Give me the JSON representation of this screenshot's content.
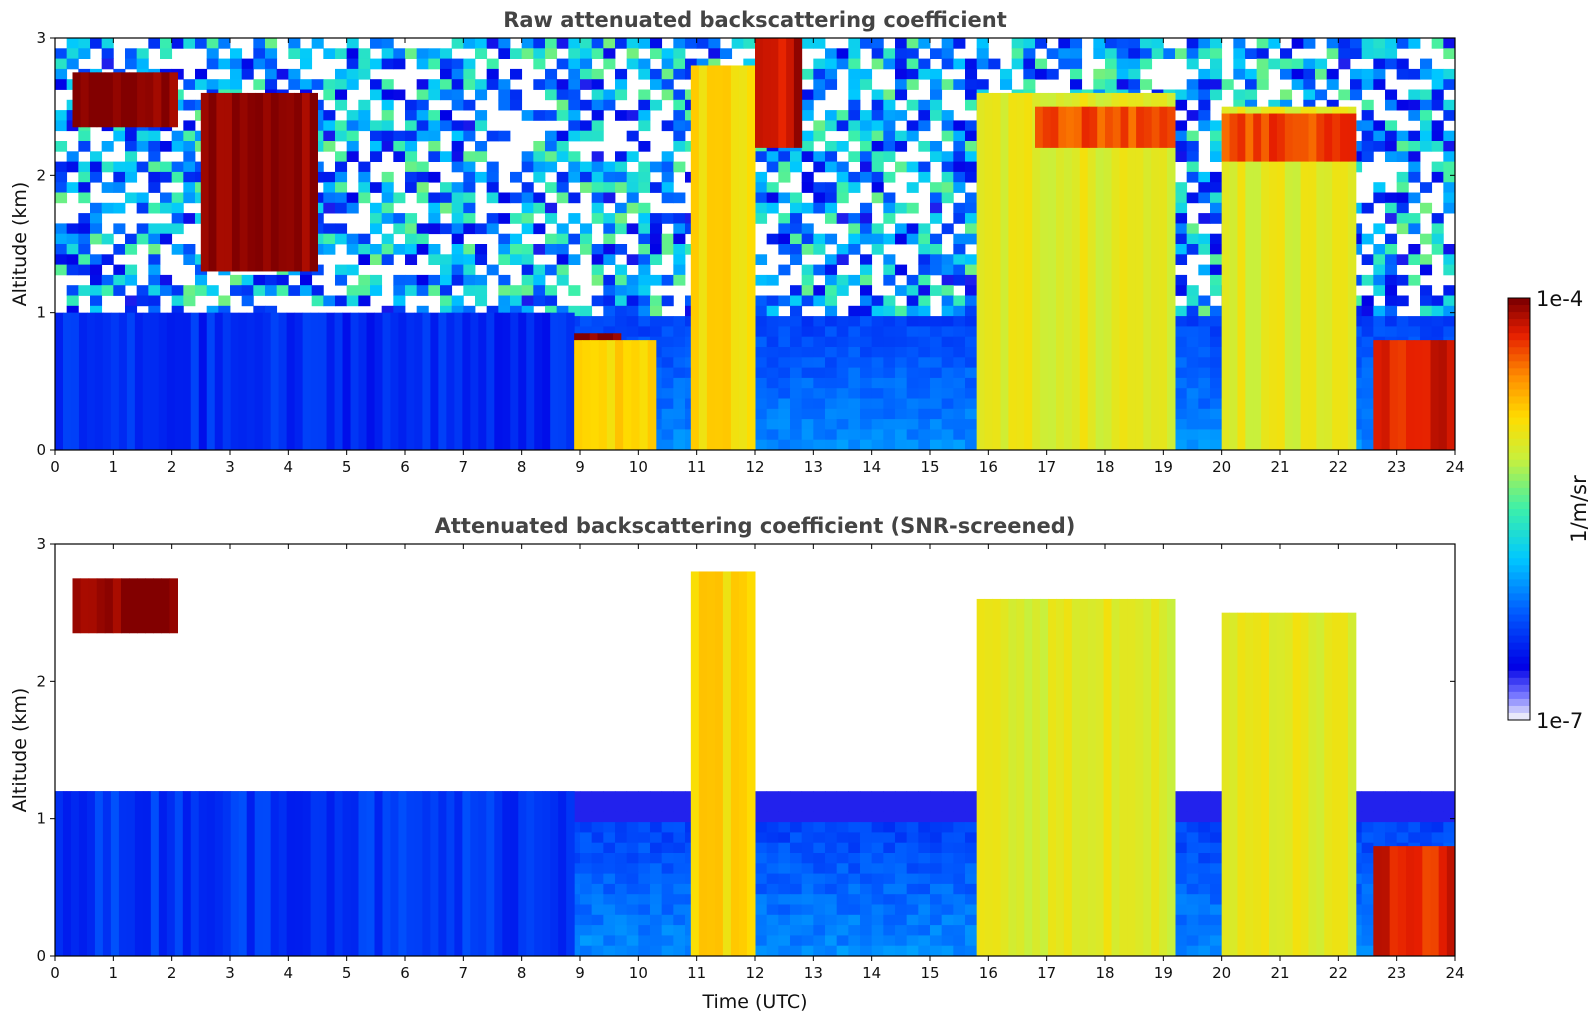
{
  "figure": {
    "colorbar": {
      "label": "1/m/sr",
      "max_label": "1e-4",
      "min_label": "1e-7",
      "scale": "log",
      "colormap": "jet-like (white/lavender at minimum to dark red at maximum)"
    }
  },
  "chart_data": [
    {
      "type": "heatmap",
      "title": "Raw attenuated backscattering coefficient",
      "xlabel": "",
      "ylabel": "Altitude (km)",
      "xlim": [
        0,
        24
      ],
      "ylim": [
        0,
        3
      ],
      "xticks": [
        "0",
        "1",
        "2",
        "3",
        "4",
        "5",
        "6",
        "7",
        "8",
        "9",
        "10",
        "11",
        "12",
        "13",
        "14",
        "15",
        "16",
        "17",
        "18",
        "19",
        "20",
        "21",
        "22",
        "23",
        "24"
      ],
      "yticks": [
        "0",
        "1",
        "2",
        "3"
      ],
      "features": [
        {
          "label": "noisy boundary layer, low signal",
          "x": [
            0,
            8.9
          ],
          "y": [
            0,
            1.0
          ],
          "level": 0.18
        },
        {
          "label": "elevated cloud layer",
          "x": [
            0.3,
            2.1
          ],
          "y": [
            2.35,
            2.75
          ],
          "level": 1.0
        },
        {
          "label": "cloud streaks",
          "x": [
            2.5,
            4.5
          ],
          "y": [
            1.3,
            2.6
          ],
          "level": 1.0
        },
        {
          "label": "low cloud at 0.8 km",
          "x": [
            8.9,
            9.7
          ],
          "y": [
            0.7,
            0.85
          ],
          "level": 1.0
        },
        {
          "label": "precipitation/aerosol column",
          "x": [
            8.9,
            10.3
          ],
          "y": [
            0,
            0.8
          ],
          "level": 0.72
        },
        {
          "label": "precipitation column",
          "x": [
            10.9,
            12.0
          ],
          "y": [
            0,
            2.8
          ],
          "level": 0.72
        },
        {
          "label": "cirrus streak",
          "x": [
            12.0,
            12.8
          ],
          "y": [
            2.2,
            3.0
          ],
          "level": 0.95
        },
        {
          "label": "thick layer",
          "x": [
            15.8,
            19.2
          ],
          "y": [
            0,
            2.6
          ],
          "level": 0.66
        },
        {
          "label": "cloud top",
          "x": [
            16.8,
            19.2
          ],
          "y": [
            2.2,
            2.5
          ],
          "level": 0.88
        },
        {
          "label": "thick layer",
          "x": [
            20.0,
            22.3
          ],
          "y": [
            0,
            2.5
          ],
          "level": 0.66
        },
        {
          "label": "cloud top",
          "x": [
            20.0,
            22.3
          ],
          "y": [
            2.1,
            2.45
          ],
          "level": 0.88
        },
        {
          "label": "low dense layer",
          "x": [
            22.6,
            24
          ],
          "y": [
            0,
            0.8
          ],
          "level": 0.92
        }
      ]
    },
    {
      "type": "heatmap",
      "title": "Attenuated backscattering coefficient (SNR-screened)",
      "xlabel": "Time (UTC)",
      "ylabel": "Altitude (km)",
      "xlim": [
        0,
        24
      ],
      "ylim": [
        0,
        3
      ],
      "xticks": [
        "0",
        "1",
        "2",
        "3",
        "4",
        "5",
        "6",
        "7",
        "8",
        "9",
        "10",
        "11",
        "12",
        "13",
        "14",
        "15",
        "16",
        "17",
        "18",
        "19",
        "20",
        "21",
        "22",
        "23",
        "24"
      ],
      "yticks": [
        "0",
        "1",
        "2",
        "3"
      ],
      "features": [
        {
          "label": "boundary layer (screened)",
          "x": [
            0,
            8.9
          ],
          "y": [
            0,
            1.2
          ],
          "level": 0.2
        },
        {
          "label": "elevated cloud layer",
          "x": [
            0.3,
            2.1
          ],
          "y": [
            2.35,
            2.75
          ],
          "level": 1.0
        },
        {
          "label": "precipitation column",
          "x": [
            10.9,
            12.0
          ],
          "y": [
            0,
            2.8
          ],
          "level": 0.72
        },
        {
          "label": "thick layer",
          "x": [
            15.8,
            19.2
          ],
          "y": [
            0,
            2.6
          ],
          "level": 0.66
        },
        {
          "label": "thick layer",
          "x": [
            20.0,
            22.3
          ],
          "y": [
            0,
            2.5
          ],
          "level": 0.66
        },
        {
          "label": "low dense layer",
          "x": [
            22.6,
            24
          ],
          "y": [
            0,
            0.8
          ],
          "level": 0.92
        }
      ]
    }
  ]
}
